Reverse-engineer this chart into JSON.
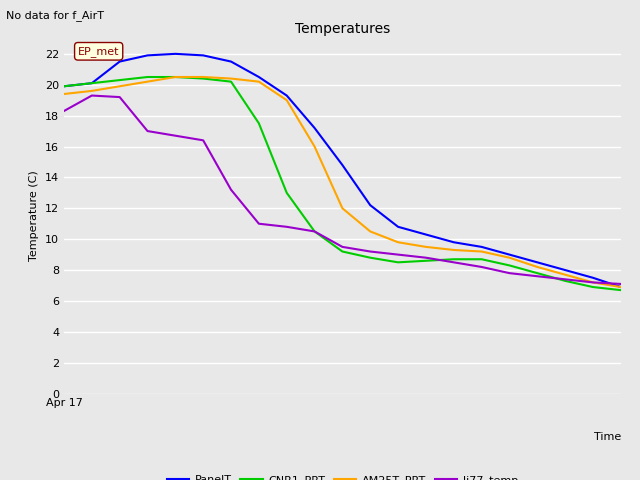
{
  "title": "Temperatures",
  "xlabel": "Time",
  "ylabel": "Temperature (C)",
  "no_data_text": "No data for f_AirT",
  "annotation_text": "EP_met",
  "ylim": [
    0,
    23
  ],
  "yticks": [
    0,
    2,
    4,
    6,
    8,
    10,
    12,
    14,
    16,
    18,
    20,
    22
  ],
  "xlabel_tick": "Apr 17",
  "fig_bg_color": "#e8e8e8",
  "plot_bg_color": "#e8e8e8",
  "line_colors": {
    "PanelT": "#0000ff",
    "CNR1_PRT": "#00cc00",
    "AM25T_PRT": "#ffa500",
    "li77_temp": "#9900cc"
  },
  "PanelT_x": [
    0,
    1,
    2,
    3,
    4,
    5,
    6,
    7,
    8,
    9,
    10,
    11,
    12,
    13,
    14,
    15,
    16,
    17,
    18,
    19,
    20
  ],
  "PanelT_y": [
    19.9,
    20.1,
    21.5,
    21.9,
    22.0,
    21.9,
    21.5,
    20.5,
    19.3,
    17.2,
    14.8,
    12.2,
    10.8,
    10.3,
    9.8,
    9.5,
    9.0,
    8.5,
    8.0,
    7.5,
    6.9
  ],
  "CNR1_PRT_x": [
    0,
    1,
    2,
    3,
    4,
    5,
    6,
    7,
    8,
    9,
    10,
    11,
    12,
    13,
    14,
    15,
    16,
    17,
    18,
    19,
    20
  ],
  "CNR1_PRT_y": [
    19.9,
    20.1,
    20.3,
    20.5,
    20.5,
    20.4,
    20.2,
    17.5,
    13.0,
    10.5,
    9.2,
    8.8,
    8.5,
    8.6,
    8.7,
    8.7,
    8.3,
    7.8,
    7.3,
    6.9,
    6.7
  ],
  "AM25T_PRT_x": [
    0,
    1,
    2,
    3,
    4,
    5,
    6,
    7,
    8,
    9,
    10,
    11,
    12,
    13,
    14,
    15,
    16,
    17,
    18,
    19,
    20
  ],
  "AM25T_PRT_y": [
    19.4,
    19.6,
    19.9,
    20.2,
    20.5,
    20.5,
    20.4,
    20.2,
    19.0,
    16.0,
    12.0,
    10.5,
    9.8,
    9.5,
    9.3,
    9.2,
    8.8,
    8.2,
    7.7,
    7.2,
    6.9
  ],
  "li77_temp_x": [
    0,
    1,
    2,
    3,
    4,
    5,
    6,
    7,
    8,
    9,
    10,
    11,
    12,
    13,
    14,
    15,
    16,
    17,
    18,
    19,
    20
  ],
  "li77_temp_y": [
    18.3,
    19.3,
    19.2,
    17.0,
    16.7,
    16.4,
    13.2,
    11.0,
    10.8,
    10.5,
    9.5,
    9.2,
    9.0,
    8.8,
    8.5,
    8.2,
    7.8,
    7.6,
    7.4,
    7.2,
    7.1
  ]
}
